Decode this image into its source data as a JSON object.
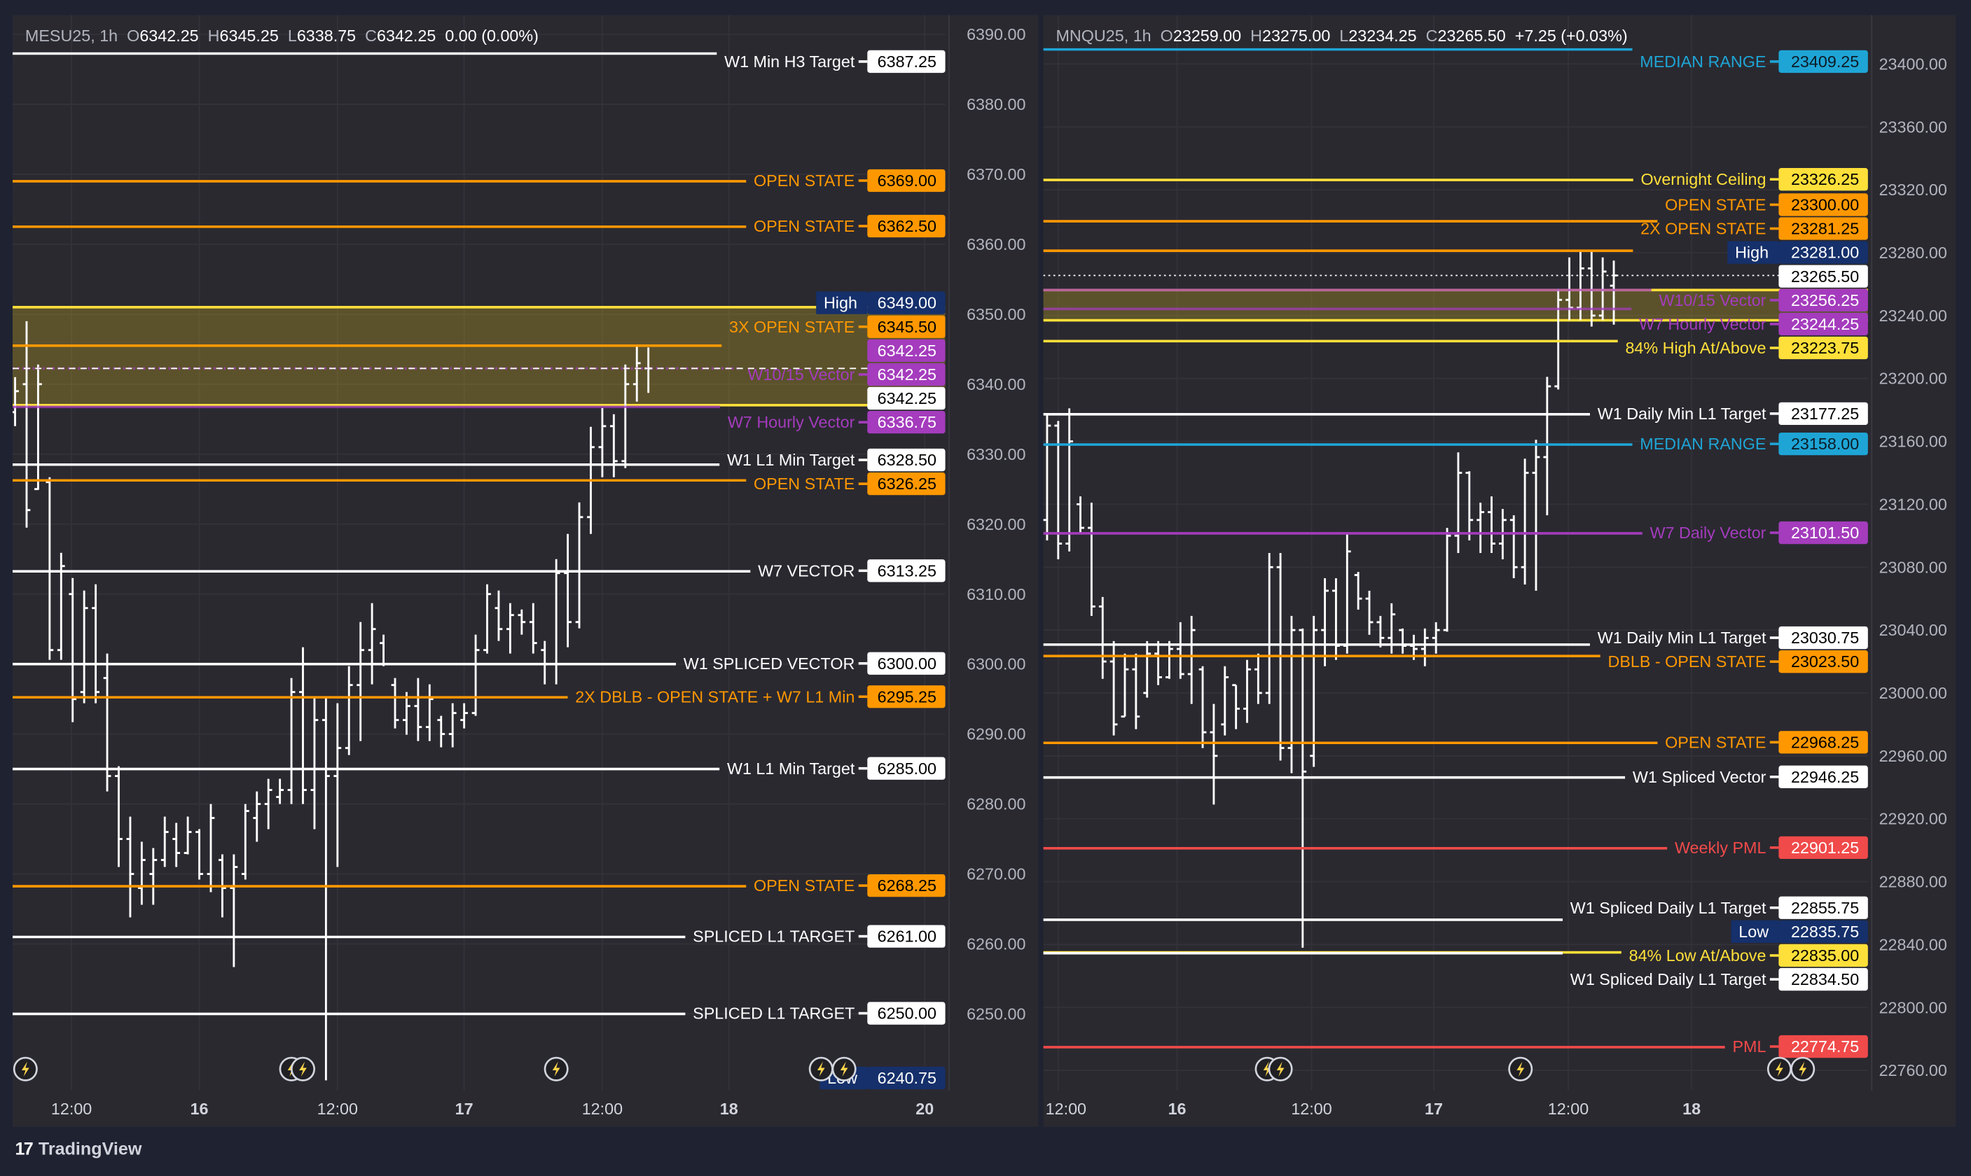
{
  "app": {
    "brand": "TradingView"
  },
  "colors": {
    "white": "#ffffff",
    "orange": "#ff9800",
    "purple": "#a43cbd",
    "yellow": "#ffe03a",
    "cyan": "#1ea5d6",
    "red": "#f04a4a",
    "navy": "#15306b",
    "axis_text": "#b2b5be",
    "bar": "#ffffff"
  },
  "panes": [
    {
      "symbol": "MESU25, 1h",
      "ohlc": {
        "o_label": "O",
        "o": "6342.25",
        "h_label": "H",
        "h": "6345.25",
        "l_label": "L",
        "l": "6338.75",
        "c_label": "C",
        "c": "6342.25"
      },
      "change": "0.00 (0.00%)",
      "price_axis": [
        "6390.00",
        "6380.00",
        "6370.00",
        "6360.00",
        "6350.00",
        "6340.00",
        "6330.00",
        "6320.00",
        "6310.00",
        "6300.00",
        "6290.00",
        "6280.00",
        "6270.00",
        "6260.00",
        "6250.00"
      ],
      "time_axis": [
        {
          "label": "12:00",
          "bar": 4.9,
          "bold": false
        },
        {
          "label": "16",
          "bar": 16,
          "bold": true
        },
        {
          "label": "12:00",
          "bar": 28,
          "bold": false
        },
        {
          "label": "17",
          "bar": 39,
          "bold": true
        },
        {
          "label": "12:00",
          "bar": 51,
          "bold": false
        },
        {
          "label": "18",
          "bar": 62,
          "bold": true
        },
        {
          "label": "20",
          "bar": 79,
          "bold": true
        }
      ],
      "zones": [
        {
          "top": 6351.0,
          "bottom": 6337.0,
          "color": "yellow"
        }
      ],
      "lines": [
        {
          "value": 6387.25,
          "tag": "6387.25",
          "label": "W1 Min H3 Target",
          "color": "white"
        },
        {
          "value": 6369.0,
          "tag": "6369.00",
          "label": "OPEN STATE",
          "color": "orange"
        },
        {
          "value": 6362.5,
          "tag": "6362.50",
          "label": "OPEN STATE",
          "color": "orange"
        },
        {
          "value": 6349.0,
          "tag": "6349.00",
          "label": "High",
          "color": "navy",
          "kind": "marker"
        },
        {
          "value": 6345.5,
          "tag": "6345.50",
          "label": "3X OPEN STATE",
          "color": "orange"
        },
        {
          "value": 6342.25,
          "tag": "6342.25",
          "label": "",
          "color": "purple",
          "kind": "tagonly"
        },
        {
          "value": 6342.25,
          "tag": "6342.25",
          "label": "W10/15 Vector",
          "color": "purple",
          "faded": true,
          "style": "dotted"
        },
        {
          "value": 6342.25,
          "tag": "6342.25",
          "label": "",
          "color": "white",
          "kind": "current",
          "style": "dashed"
        },
        {
          "value": 6336.75,
          "tag": "6336.75",
          "label": "W7 Hourly Vector",
          "color": "purple",
          "faded": true
        },
        {
          "value": 6328.5,
          "tag": "6328.50",
          "label": "W1 L1 Min Target",
          "color": "white"
        },
        {
          "value": 6326.25,
          "tag": "6326.25",
          "label": "OPEN STATE",
          "color": "orange"
        },
        {
          "value": 6313.25,
          "tag": "6313.25",
          "label": "W7 VECTOR",
          "color": "white"
        },
        {
          "value": 6300.0,
          "tag": "6300.00",
          "label": "W1 SPLICED VECTOR",
          "color": "white"
        },
        {
          "value": 6295.25,
          "tag": "6295.25",
          "label": "2X DBLB - OPEN STATE + W7 L1 Min",
          "color": "orange"
        },
        {
          "value": 6285.0,
          "tag": "6285.00",
          "label": "W1 L1 Min Target",
          "color": "white"
        },
        {
          "value": 6268.25,
          "tag": "6268.25",
          "label": "OPEN STATE",
          "color": "orange"
        },
        {
          "value": 6261.0,
          "tag": "6261.00",
          "label": "SPLICED L1 TARGET",
          "color": "white"
        },
        {
          "value": 6250.0,
          "tag": "6250.00",
          "label": "SPLICED L1 TARGET",
          "color": "white"
        },
        {
          "value": 6240.75,
          "tag": "6240.75",
          "label": "Low",
          "color": "navy",
          "kind": "marker"
        }
      ],
      "event_markers": [
        0.9,
        24,
        25,
        47,
        70,
        72
      ],
      "bars": [
        [
          6336,
          6341,
          6334,
          6339
        ],
        [
          6340,
          6349,
          6319.5,
          6322
        ],
        [
          6325,
          6342.8,
          6324.9,
          6340
        ],
        [
          6326,
          6326.7,
          6300.6,
          6302
        ],
        [
          6302,
          6315.9,
          6300.6,
          6314
        ],
        [
          6310,
          6312.3,
          6291.7,
          6295
        ],
        [
          6296,
          6310.5,
          6294.4,
          6308
        ],
        [
          6308,
          6311.4,
          6294.4,
          6296
        ],
        [
          6298,
          6301.5,
          6281.8,
          6284
        ],
        [
          6284,
          6285.4,
          6271,
          6275
        ],
        [
          6275,
          6278.2,
          6263.8,
          6270
        ],
        [
          6268,
          6274.6,
          6265.6,
          6272
        ],
        [
          6270,
          6273.7,
          6265.6,
          6272
        ],
        [
          6272,
          6278.2,
          6271,
          6276
        ],
        [
          6275,
          6277.3,
          6271,
          6273
        ],
        [
          6273,
          6278.2,
          6272.8,
          6276
        ],
        [
          6276,
          6276.4,
          6269.2,
          6270
        ],
        [
          6270,
          6280,
          6267.4,
          6278
        ],
        [
          6272,
          6272.8,
          6263.8,
          6268
        ],
        [
          6268,
          6272.8,
          6256.7,
          6271
        ],
        [
          6270,
          6280,
          6269.2,
          6279
        ],
        [
          6278,
          6281.8,
          6274.6,
          6280
        ],
        [
          6280,
          6283.6,
          6276.4,
          6282
        ],
        [
          6281,
          6283.6,
          6280,
          6282
        ],
        [
          6282,
          6298,
          6280,
          6296
        ],
        [
          6296,
          6302.4,
          6280,
          6282
        ],
        [
          6282,
          6295.3,
          6276.4,
          6292
        ],
        [
          6292,
          6295.3,
          6240.5,
          6284
        ],
        [
          6284,
          6294.4,
          6271,
          6288
        ],
        [
          6288,
          6299.7,
          6287,
          6297
        ],
        [
          6297,
          6306,
          6289,
          6302
        ],
        [
          6302,
          6308.7,
          6297.1,
          6305
        ],
        [
          6303,
          6304.2,
          6299.7,
          6300
        ],
        [
          6297,
          6298,
          6290.8,
          6292
        ],
        [
          6292,
          6296,
          6289.9,
          6294
        ],
        [
          6294,
          6298,
          6289,
          6291
        ],
        [
          6291,
          6297.1,
          6289,
          6295
        ],
        [
          6292,
          6292.6,
          6288.1,
          6290
        ],
        [
          6290,
          6294.4,
          6288.1,
          6293
        ],
        [
          6292,
          6294.4,
          6290.8,
          6293
        ],
        [
          6293,
          6304.2,
          6292.6,
          6302
        ],
        [
          6302,
          6311.4,
          6301.5,
          6310
        ],
        [
          6308,
          6310.5,
          6303.3,
          6305
        ],
        [
          6305,
          6308.7,
          6301.5,
          6307
        ],
        [
          6307,
          6307.8,
          6304.2,
          6306
        ],
        [
          6306,
          6308.7,
          6301.5,
          6303
        ],
        [
          6302,
          6303.3,
          6297.1,
          6300
        ],
        [
          6300,
          6315,
          6297.1,
          6313
        ],
        [
          6313,
          6318.6,
          6302.4,
          6306
        ],
        [
          6306,
          6323.1,
          6305.1,
          6321
        ],
        [
          6321,
          6333.9,
          6318.6,
          6331
        ],
        [
          6331,
          6336.6,
          6326.7,
          6334
        ],
        [
          6334,
          6335.7,
          6326.7,
          6329
        ],
        [
          6329,
          6342.8,
          6328,
          6340
        ],
        [
          6340,
          6345.5,
          6337.5,
          6343
        ],
        [
          6342.25,
          6345.25,
          6338.75,
          6342.25
        ]
      ]
    },
    {
      "symbol": "MNQU25, 1h",
      "ohlc": {
        "o_label": "O",
        "o": "23259.00",
        "h_label": "H",
        "h": "23275.00",
        "l_label": "L",
        "l": "23234.25",
        "c_label": "C",
        "c": "23265.50"
      },
      "change": "+7.25 (+0.03%)",
      "price_axis": [
        "23400.00",
        "23360.00",
        "23320.00",
        "23280.00",
        "23240.00",
        "23200.00",
        "23160.00",
        "23120.00",
        "23080.00",
        "23040.00",
        "23000.00",
        "22960.00",
        "22920.00",
        "22880.00",
        "22840.00",
        "22800.00",
        "22760.00"
      ],
      "time_axis": [
        {
          "label": "12:00",
          "bar": 1,
          "bold": false
        },
        {
          "label": "16",
          "bar": 11.7,
          "bold": true
        },
        {
          "label": "12:00",
          "bar": 23.8,
          "bold": false
        },
        {
          "label": "17",
          "bar": 34.8,
          "bold": true
        },
        {
          "label": "12:00",
          "bar": 46.9,
          "bold": false
        },
        {
          "label": "18",
          "bar": 58,
          "bold": true
        }
      ],
      "zones": [
        {
          "top": 23256.25,
          "bottom": 23237.0,
          "color": "yellow"
        }
      ],
      "lines": [
        {
          "value": 23409.25,
          "tag": "23409.25",
          "label": "MEDIAN RANGE",
          "color": "cyan"
        },
        {
          "value": 23326.25,
          "tag": "23326.25",
          "label": "Overnight Ceiling",
          "color": "yellow"
        },
        {
          "value": 23300.0,
          "tag": "23300.00",
          "label": "OPEN STATE",
          "color": "orange"
        },
        {
          "value": 23281.25,
          "tag": "23281.25",
          "label": "2X OPEN STATE",
          "color": "orange"
        },
        {
          "value": 23281.0,
          "tag": "23281.00",
          "label": "High",
          "color": "navy",
          "kind": "marker"
        },
        {
          "value": 23265.5,
          "tag": "23265.50",
          "label": "",
          "color": "white",
          "kind": "current",
          "style": "dotted"
        },
        {
          "value": 23256.25,
          "tag": "23256.25",
          "label": "W10/15 Vector",
          "color": "purple",
          "faded": true
        },
        {
          "value": 23244.25,
          "tag": "23244.25",
          "label": "W7 Hourly Vector",
          "color": "purple",
          "faded": true
        },
        {
          "value": 23223.75,
          "tag": "23223.75",
          "label": "84% High At/Above",
          "color": "yellow"
        },
        {
          "value": 23177.25,
          "tag": "23177.25",
          "label": "W1 Daily Min L1 Target",
          "color": "white"
        },
        {
          "value": 23158.0,
          "tag": "23158.00",
          "label": "MEDIAN RANGE",
          "color": "cyan"
        },
        {
          "value": 23101.5,
          "tag": "23101.50",
          "label": "W7 Daily Vector",
          "color": "purple"
        },
        {
          "value": 23030.75,
          "tag": "23030.75",
          "label": "W1 Daily Min L1 Target",
          "color": "white"
        },
        {
          "value": 23023.5,
          "tag": "23023.50",
          "label": "DBLB - OPEN STATE",
          "color": "orange"
        },
        {
          "value": 22968.25,
          "tag": "22968.25",
          "label": "OPEN STATE",
          "color": "orange"
        },
        {
          "value": 22946.25,
          "tag": "22946.25",
          "label": "W1 Spliced Vector",
          "color": "white"
        },
        {
          "value": 22901.25,
          "tag": "22901.25",
          "label": "Weekly PML",
          "color": "red"
        },
        {
          "value": 22855.75,
          "tag": "22855.75",
          "label": "W1 Spliced Daily L1 Target",
          "color": "white"
        },
        {
          "value": 22835.75,
          "tag": "22835.75",
          "label": "Low",
          "color": "navy",
          "kind": "marker"
        },
        {
          "value": 22835.0,
          "tag": "22835.00",
          "label": "84% Low At/Above",
          "color": "yellow"
        },
        {
          "value": 22834.5,
          "tag": "22834.50",
          "label": "W1 Spliced Daily L1 Target",
          "color": "white"
        },
        {
          "value": 22774.75,
          "tag": "22774.75",
          "label": "PML",
          "color": "red"
        }
      ],
      "event_markers": [
        19.8,
        21,
        42.6,
        65.9,
        68
      ],
      "bars": [
        [
          23110,
          23177,
          23097,
          23170
        ],
        [
          23170,
          23173,
          23085,
          23095
        ],
        [
          23095,
          23181,
          23090,
          23160
        ],
        [
          23120,
          23125,
          23101,
          23105
        ],
        [
          23105,
          23121,
          23049,
          23055
        ],
        [
          23055,
          23061,
          23009,
          23020
        ],
        [
          23020,
          23033,
          22973,
          22980
        ],
        [
          22985,
          23025,
          22985,
          23015
        ],
        [
          23015,
          23025,
          22977,
          22985
        ],
        [
          23000,
          23033,
          22997,
          23025
        ],
        [
          23025,
          23033,
          23005,
          23010
        ],
        [
          23010,
          23033,
          23009,
          23028
        ],
        [
          23028,
          23045,
          23009,
          23012
        ],
        [
          23012,
          23049,
          22993,
          23040
        ],
        [
          23015,
          23017,
          22965,
          22975
        ],
        [
          22975,
          22993,
          22929,
          22960
        ],
        [
          22980,
          23017,
          22973,
          23010
        ],
        [
          23005,
          23005,
          22977,
          22990
        ],
        [
          22990,
          23021,
          22981,
          23015
        ],
        [
          23015,
          23025,
          22993,
          23000
        ],
        [
          23000,
          23089,
          22993,
          23080
        ],
        [
          23080,
          23089,
          22957,
          22965
        ],
        [
          22965,
          23049,
          22949,
          23040
        ],
        [
          23040,
          23041,
          22838,
          22950
        ],
        [
          22960,
          23049,
          22953,
          23040
        ],
        [
          23040,
          23073,
          23017,
          23065
        ],
        [
          23065,
          23073,
          23021,
          23030
        ],
        [
          23030,
          23101,
          23025,
          23090
        ],
        [
          23075,
          23077,
          23053,
          23060
        ],
        [
          23060,
          23065,
          23037,
          23045
        ],
        [
          23045,
          23049,
          23029,
          23035
        ],
        [
          23035,
          23057,
          23025,
          23050
        ],
        [
          23040,
          23041,
          23025,
          23030
        ],
        [
          23030,
          23037,
          23021,
          23028
        ],
        [
          23028,
          23041,
          23017,
          23035
        ],
        [
          23035,
          23045,
          23025,
          23040
        ],
        [
          23040,
          23105,
          23039,
          23100
        ],
        [
          23100,
          23153,
          23089,
          23140
        ],
        [
          23140,
          23141,
          23097,
          23110
        ],
        [
          23110,
          23121,
          23089,
          23115
        ],
        [
          23115,
          23125,
          23089,
          23095
        ],
        [
          23095,
          23117,
          23085,
          23110
        ],
        [
          23110,
          23113,
          23073,
          23080
        ],
        [
          23080,
          23149,
          23069,
          23140
        ],
        [
          23140,
          23161,
          23065,
          23150
        ],
        [
          23150,
          23201,
          23113,
          23195
        ],
        [
          23195,
          23257,
          23193,
          23250
        ],
        [
          23250,
          23277,
          23237,
          23245
        ],
        [
          23245,
          23281,
          23237,
          23270
        ],
        [
          23270,
          23281,
          23233,
          23240
        ],
        [
          23240,
          23277,
          23237,
          23268
        ],
        [
          23259,
          23275,
          23234.25,
          23265.5
        ]
      ]
    }
  ]
}
